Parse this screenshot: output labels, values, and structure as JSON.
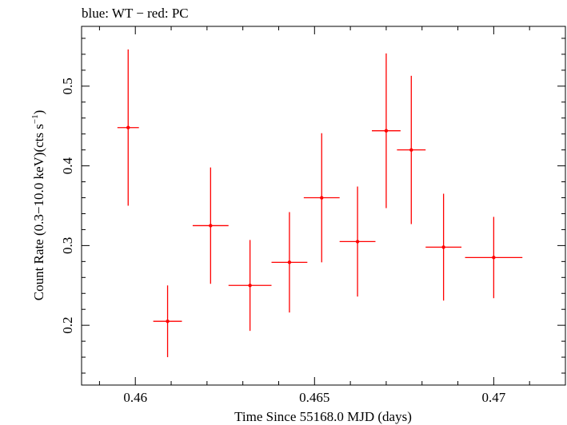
{
  "chart_data": {
    "type": "scatter",
    "title": "blue: WT − red: PC",
    "xlabel": "Time Since 55168.0 MJD (days)",
    "ylabel_main": "Count Rate (0.3−10.0 keV)(cts s",
    "ylabel_sup": "−1",
    "ylabel_end": ")",
    "xlim": [
      0.4585,
      0.472
    ],
    "ylim": [
      0.125,
      0.575
    ],
    "x_ticks": [
      0.46,
      0.465,
      0.47
    ],
    "x_tick_labels": [
      "0.46",
      "0.465",
      "0.47"
    ],
    "y_ticks": [
      0.2,
      0.3,
      0.4,
      0.5
    ],
    "y_tick_labels": [
      "0.2",
      "0.3",
      "0.4",
      "0.5"
    ],
    "grid": false,
    "series": [
      {
        "color": "#ff0000",
        "points": [
          {
            "x": 0.4598,
            "xerr": 0.0003,
            "y": 0.448,
            "yerr": 0.098
          },
          {
            "x": 0.4609,
            "xerr": 0.0004,
            "y": 0.205,
            "yerr": 0.045
          },
          {
            "x": 0.4621,
            "xerr": 0.0005,
            "y": 0.325,
            "yerr": 0.073
          },
          {
            "x": 0.4632,
            "xerr": 0.0006,
            "y": 0.25,
            "yerr": 0.057
          },
          {
            "x": 0.4643,
            "xerr": 0.0005,
            "y": 0.279,
            "yerr": 0.063
          },
          {
            "x": 0.4652,
            "xerr": 0.0005,
            "y": 0.36,
            "yerr": 0.081
          },
          {
            "x": 0.4662,
            "xerr": 0.0005,
            "y": 0.305,
            "yerr": 0.069
          },
          {
            "x": 0.467,
            "xerr": 0.0004,
            "y": 0.444,
            "yerr": 0.097
          },
          {
            "x": 0.4677,
            "xerr": 0.0004,
            "y": 0.42,
            "yerr": 0.093
          },
          {
            "x": 0.4686,
            "xerr": 0.0005,
            "y": 0.298,
            "yerr": 0.067
          },
          {
            "x": 0.47,
            "xerr": 0.0008,
            "y": 0.285,
            "yerr": 0.051
          }
        ]
      }
    ]
  }
}
